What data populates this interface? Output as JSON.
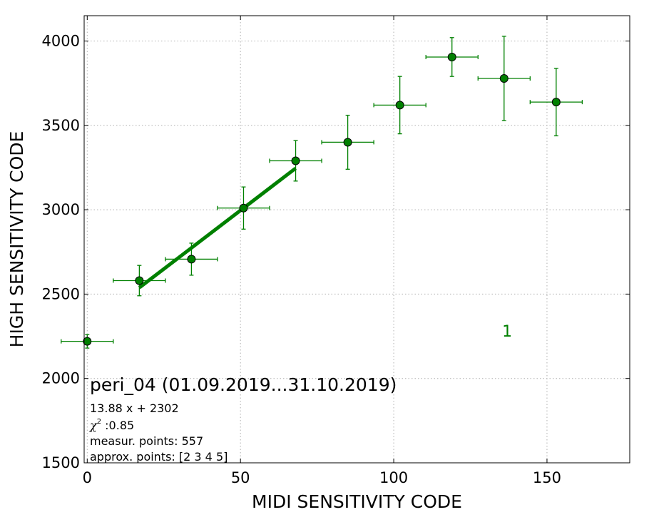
{
  "chart_data": {
    "type": "scatter",
    "xlabel": "MIDI SENSITIVITY CODE",
    "ylabel": "HIGH SENSITIVITY CODE",
    "xlim": [
      -1,
      177
    ],
    "ylim": [
      1500,
      4150
    ],
    "x_ticks": [
      0,
      50,
      100,
      150
    ],
    "y_ticks": [
      1500,
      2000,
      2500,
      3000,
      3500,
      4000
    ],
    "grid": true,
    "points": [
      {
        "x": 0,
        "y": 2220,
        "xerr": 8.5,
        "yerr": 40
      },
      {
        "x": 17,
        "y": 2580,
        "xerr": 8.5,
        "yerr": 90
      },
      {
        "x": 34,
        "y": 2707,
        "xerr": 8.5,
        "yerr": 95
      },
      {
        "x": 51,
        "y": 3010,
        "xerr": 8.5,
        "yerr": 125
      },
      {
        "x": 68,
        "y": 3290,
        "xerr": 8.5,
        "yerr": 120
      },
      {
        "x": 85,
        "y": 3400,
        "xerr": 8.5,
        "yerr": 160
      },
      {
        "x": 102,
        "y": 3620,
        "xerr": 8.5,
        "yerr": 170
      },
      {
        "x": 119,
        "y": 3905,
        "xerr": 8.5,
        "yerr": 115
      },
      {
        "x": 136,
        "y": 3778,
        "xerr": 8.5,
        "yerr": 250
      },
      {
        "x": 153,
        "y": 3638,
        "xerr": 8.5,
        "yerr": 200
      }
    ],
    "fit_line": {
      "slope": 13.88,
      "intercept": 2302,
      "x_range": [
        17,
        68
      ]
    },
    "annotations": {
      "title": "peri_04 (01.09.2019...31.10.2019)",
      "equation": "13.88 x + 2302",
      "chi_symbol": "χ",
      "chi_power": "2",
      "chi_value": " :0.85",
      "measur_points": "measur. points: 557",
      "approx_points": "approx. points: [2 3 4 5]",
      "marker_label": "1",
      "marker_label_x": 137,
      "marker_label_y": 2240
    }
  }
}
